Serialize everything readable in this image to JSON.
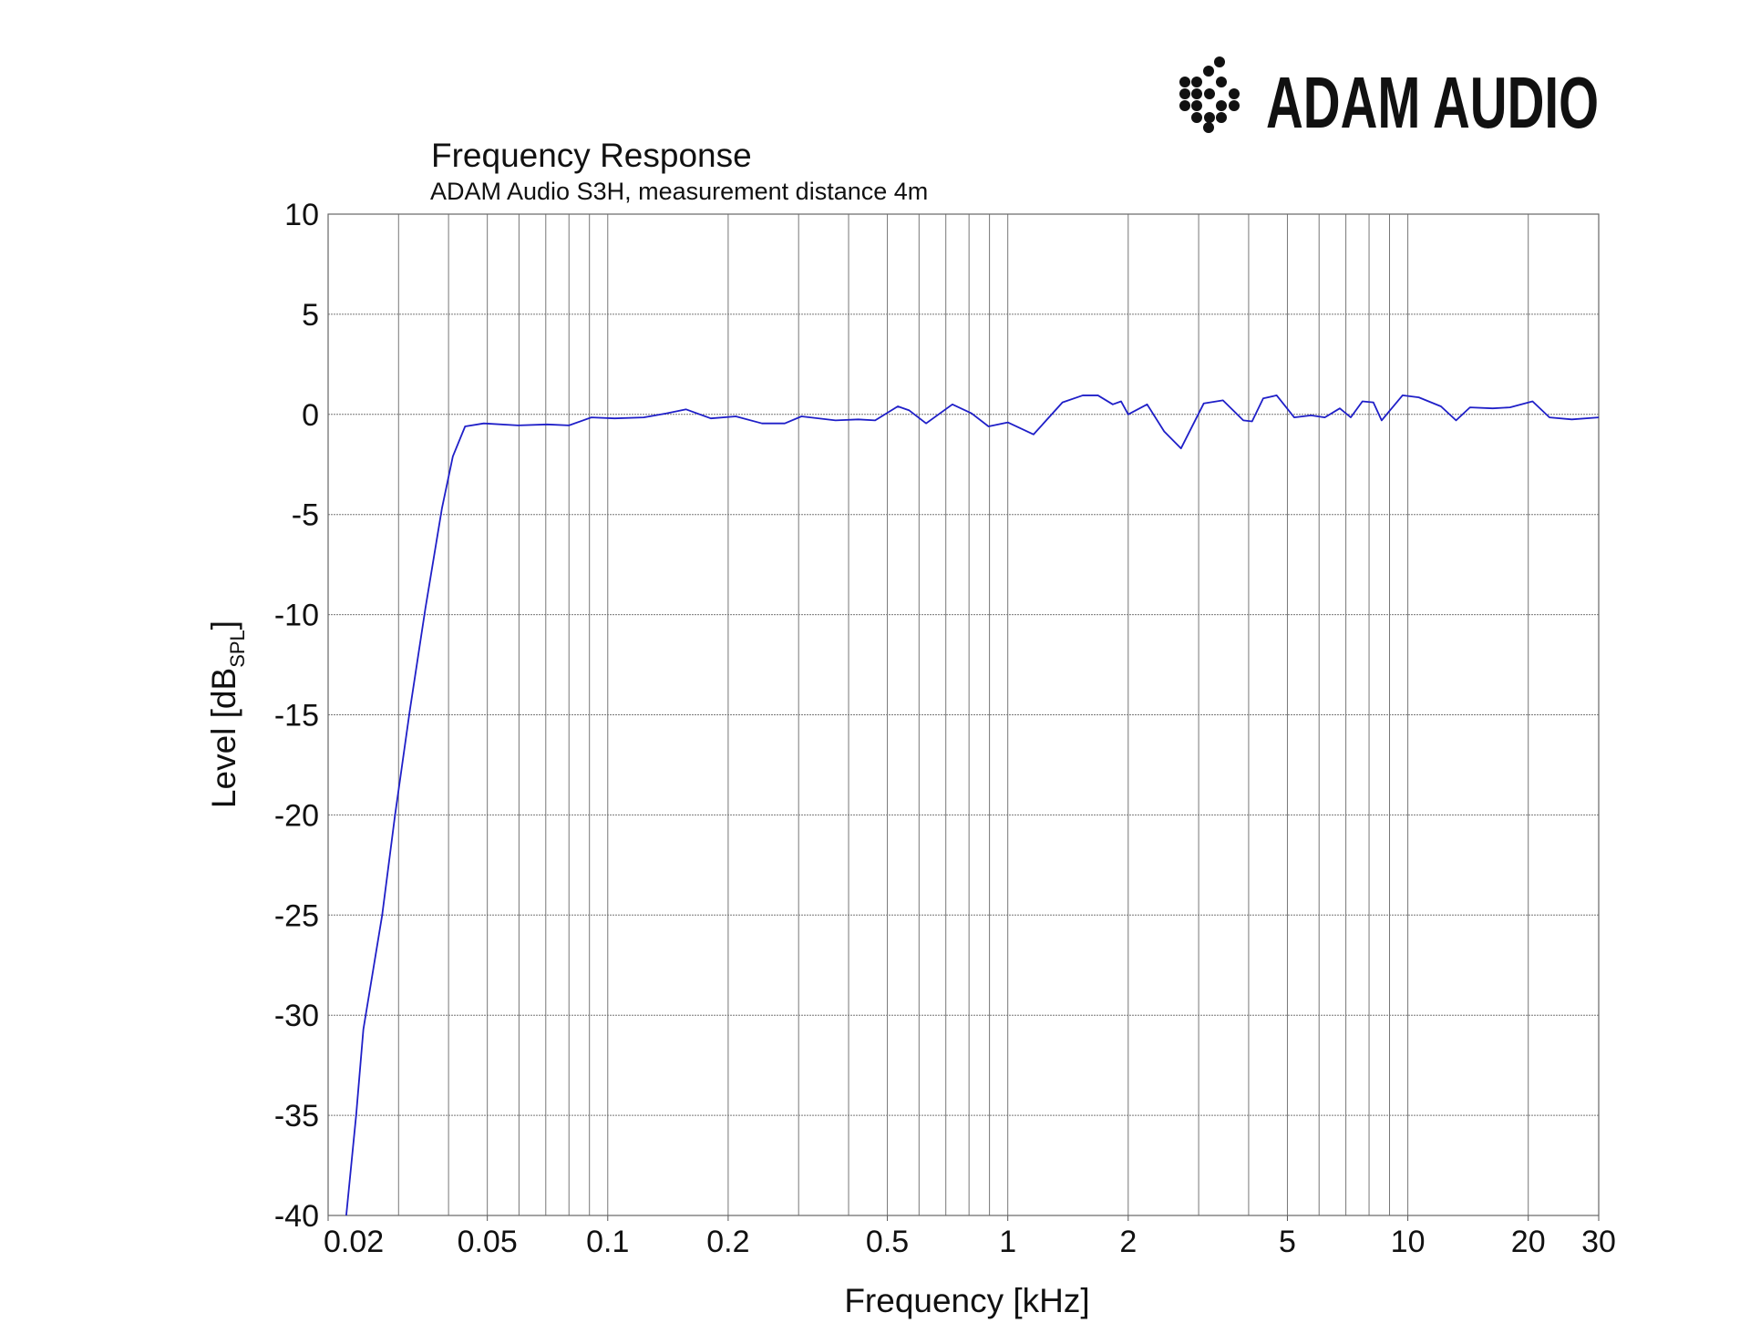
{
  "brand": "ADAM AUDIO",
  "chart_data": {
    "type": "line",
    "title": "Frequency Response",
    "subtitle": "ADAM Audio S3H, measurement distance 4m",
    "x_label": "Frequency [kHz]",
    "y_label": "Level [dB",
    "y_label_sub": "SPL",
    "y_label_end": "]",
    "x_scale": "log",
    "grid": true,
    "xlim": [
      0.02,
      30
    ],
    "ylim": [
      -40,
      10
    ],
    "xticks": [
      0.02,
      0.05,
      0.1,
      0.2,
      0.5,
      1,
      2,
      5,
      10,
      20,
      30
    ],
    "yticks": [
      -40,
      -35,
      -30,
      -25,
      -20,
      -15,
      -10,
      -5,
      0,
      5,
      10
    ],
    "x": [
      0.0222,
      0.0235,
      0.0245,
      0.0273,
      0.0294,
      0.032,
      0.035,
      0.0385,
      0.041,
      0.044,
      0.049,
      0.0597,
      0.0706,
      0.08,
      0.091,
      0.104,
      0.123,
      0.14,
      0.157,
      0.181,
      0.209,
      0.243,
      0.277,
      0.305,
      0.371,
      0.423,
      0.466,
      0.531,
      0.567,
      0.625,
      0.727,
      0.812,
      0.895,
      1,
      1.16,
      1.37,
      1.54,
      1.68,
      1.83,
      1.92,
      2.0,
      2.23,
      2.46,
      2.71,
      3.09,
      3.45,
      3.88,
      4.08,
      4.35,
      4.7,
      5.2,
      5.73,
      6.2,
      6.76,
      7.2,
      7.7,
      8.2,
      8.6,
      9.7,
      10.65,
      12.1,
      13.2,
      14.3,
      16.3,
      18.0,
      20.5,
      22.6,
      25.7,
      30
    ],
    "series": [
      {
        "name": "S3H",
        "color": "#1f1fc8",
        "values": [
          -40,
          -35,
          -30.7,
          -25,
          -20,
          -14.8,
          -9.7,
          -4.7,
          -2.1,
          -0.6,
          -0.45,
          -0.55,
          -0.5,
          -0.55,
          -0.15,
          -0.2,
          -0.15,
          0.05,
          0.25,
          -0.2,
          -0.1,
          -0.45,
          -0.45,
          -0.1,
          -0.3,
          -0.25,
          -0.3,
          0.4,
          0.2,
          -0.45,
          0.5,
          0.05,
          -0.6,
          -0.4,
          -1.0,
          0.6,
          0.95,
          0.95,
          0.5,
          0.65,
          0,
          0.5,
          -0.85,
          -1.7,
          0.55,
          0.7,
          -0.3,
          -0.35,
          0.8,
          0.95,
          -0.15,
          -0.05,
          -0.15,
          0.3,
          -0.15,
          0.65,
          0.6,
          -0.3,
          0.95,
          0.85,
          0.4,
          -0.3,
          0.35,
          0.3,
          0.35,
          0.65,
          -0.15,
          -0.25,
          -0.15
        ]
      }
    ]
  }
}
